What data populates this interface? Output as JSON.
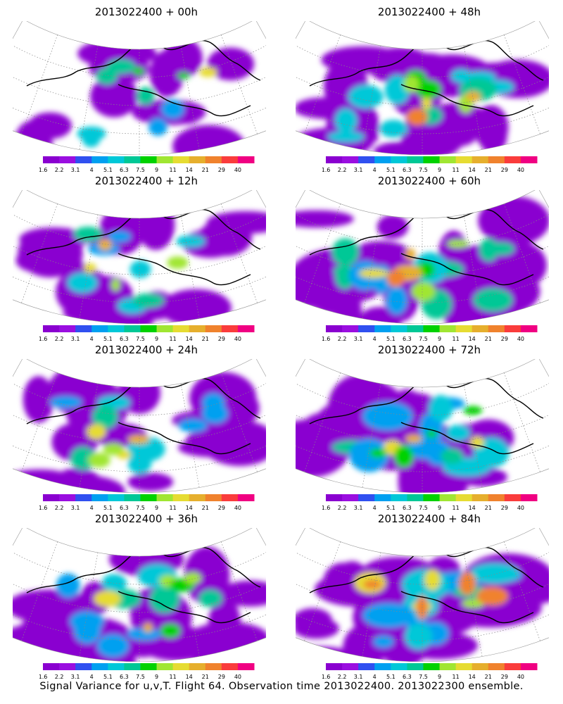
{
  "panels": [
    {
      "title": "2013022400 + 00h",
      "intensity": 0.3
    },
    {
      "title": "2013022400 + 48h",
      "intensity": 0.7
    },
    {
      "title": "2013022400 + 12h",
      "intensity": 0.4
    },
    {
      "title": "2013022400 + 60h",
      "intensity": 0.75
    },
    {
      "title": "2013022400 + 24h",
      "intensity": 0.5
    },
    {
      "title": "2013022400 + 72h",
      "intensity": 0.8
    },
    {
      "title": "2013022400 + 36h",
      "intensity": 0.6
    },
    {
      "title": "2013022400 + 84h",
      "intensity": 0.85
    }
  ],
  "colorbar": {
    "labels": [
      "1.6",
      "2.2",
      "3.1",
      "4",
      "5.1",
      "6.3",
      "7.5",
      "9",
      "11",
      "14",
      "21",
      "29",
      "40"
    ],
    "colors": [
      "#8a00d0",
      "#9a0ee0",
      "#3050f0",
      "#00a0f0",
      "#00c8d8",
      "#00c896",
      "#00d200",
      "#a0e632",
      "#e6dc32",
      "#e6af2d",
      "#f0822d",
      "#fa3c3c",
      "#f00082"
    ]
  },
  "footer": "Signal Variance for u,v,T. Flight 64. Observation time 2013022400. 2013022300 ensemble."
}
